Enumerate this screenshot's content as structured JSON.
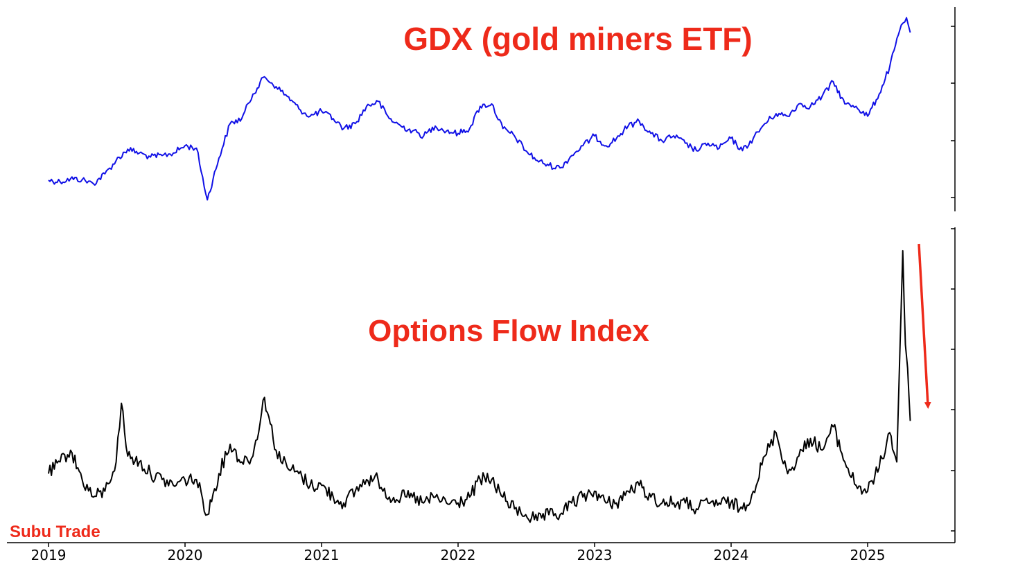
{
  "chart_data": [
    {
      "type": "line",
      "title": "GDX (gold miners ETF)",
      "xlabel": "",
      "ylabel": "",
      "y_tick_labels_shown": false,
      "grid": false,
      "series": [
        {
          "color": "#1010e6",
          "points": [
            [
              "2019-01-01",
              20.5
            ],
            [
              "2019-02-01",
              20.2
            ],
            [
              "2019-03-01",
              20.8
            ],
            [
              "2019-04-01",
              20.6
            ],
            [
              "2019-05-01",
              19.8
            ],
            [
              "2019-06-01",
              21.8
            ],
            [
              "2019-07-01",
              24.5
            ],
            [
              "2019-08-01",
              26.8
            ],
            [
              "2019-09-01",
              26.0
            ],
            [
              "2019-10-01",
              25.2
            ],
            [
              "2019-11-01",
              25.5
            ],
            [
              "2019-12-01",
              26.0
            ],
            [
              "2020-01-01",
              27.5
            ],
            [
              "2020-02-01",
              27.0
            ],
            [
              "2020-03-01",
              16.5
            ],
            [
              "2020-04-01",
              25.0
            ],
            [
              "2020-05-01",
              32.0
            ],
            [
              "2020-06-01",
              33.0
            ],
            [
              "2020-07-01",
              38.0
            ],
            [
              "2020-08-01",
              41.5
            ],
            [
              "2020-09-01",
              39.5
            ],
            [
              "2020-10-01",
              37.5
            ],
            [
              "2020-11-01",
              35.0
            ],
            [
              "2020-12-01",
              33.5
            ],
            [
              "2021-01-01",
              34.5
            ],
            [
              "2021-02-01",
              33.0
            ],
            [
              "2021-03-01",
              31.0
            ],
            [
              "2021-04-01",
              32.0
            ],
            [
              "2021-05-01",
              35.5
            ],
            [
              "2021-06-01",
              36.5
            ],
            [
              "2021-07-01",
              33.0
            ],
            [
              "2021-08-01",
              31.5
            ],
            [
              "2021-09-01",
              30.5
            ],
            [
              "2021-10-01",
              29.5
            ],
            [
              "2021-11-01",
              31.5
            ],
            [
              "2021-12-01",
              30.5
            ],
            [
              "2022-01-01",
              30.0
            ],
            [
              "2022-02-01",
              31.0
            ],
            [
              "2022-03-01",
              35.5
            ],
            [
              "2022-04-01",
              36.0
            ],
            [
              "2022-05-01",
              31.0
            ],
            [
              "2022-06-01",
              29.5
            ],
            [
              "2022-07-01",
              26.5
            ],
            [
              "2022-08-01",
              24.5
            ],
            [
              "2022-09-01",
              23.5
            ],
            [
              "2022-10-01",
              23.0
            ],
            [
              "2022-11-01",
              25.5
            ],
            [
              "2022-12-01",
              27.5
            ],
            [
              "2023-01-01",
              29.5
            ],
            [
              "2023-02-01",
              27.5
            ],
            [
              "2023-03-01",
              29.0
            ],
            [
              "2023-04-01",
              31.5
            ],
            [
              "2023-05-01",
              32.5
            ],
            [
              "2023-06-01",
              30.0
            ],
            [
              "2023-07-01",
              28.5
            ],
            [
              "2023-08-01",
              29.5
            ],
            [
              "2023-09-01",
              28.0
            ],
            [
              "2023-10-01",
              26.5
            ],
            [
              "2023-11-01",
              28.0
            ],
            [
              "2023-12-01",
              27.0
            ],
            [
              "2024-01-01",
              29.0
            ],
            [
              "2024-02-01",
              26.5
            ],
            [
              "2024-03-01",
              29.0
            ],
            [
              "2024-04-01",
              32.0
            ],
            [
              "2024-05-01",
              34.0
            ],
            [
              "2024-06-01",
              33.5
            ],
            [
              "2024-07-01",
              36.0
            ],
            [
              "2024-08-01",
              35.5
            ],
            [
              "2024-09-01",
              37.5
            ],
            [
              "2024-10-01",
              40.5
            ],
            [
              "2024-11-01",
              36.0
            ],
            [
              "2024-12-01",
              35.5
            ],
            [
              "2025-01-01",
              33.5
            ],
            [
              "2025-02-01",
              38.0
            ],
            [
              "2025-03-01",
              43.5
            ],
            [
              "2025-04-01",
              52.0
            ],
            [
              "2025-04-15",
              53.5
            ],
            [
              "2025-04-25",
              50.5
            ]
          ]
        }
      ]
    },
    {
      "type": "line",
      "title": "Options Flow Index",
      "xlabel": "",
      "ylabel": "",
      "x_tick_labels": [
        "2019",
        "2020",
        "2021",
        "2022",
        "2023",
        "2024",
        "2025"
      ],
      "y_tick_labels_shown": false,
      "grid": false,
      "series": [
        {
          "color": "#000000",
          "points": [
            [
              "2019-01-01",
              1.0
            ],
            [
              "2019-02-01",
              1.2
            ],
            [
              "2019-03-01",
              1.4
            ],
            [
              "2019-04-01",
              0.9
            ],
            [
              "2019-05-01",
              0.6
            ],
            [
              "2019-06-01",
              0.7
            ],
            [
              "2019-07-01",
              1.2
            ],
            [
              "2019-07-15",
              2.2
            ],
            [
              "2019-08-01",
              1.3
            ],
            [
              "2019-09-01",
              1.2
            ],
            [
              "2019-10-01",
              1.0
            ],
            [
              "2019-11-01",
              0.9
            ],
            [
              "2019-12-01",
              0.8
            ],
            [
              "2020-01-01",
              0.9
            ],
            [
              "2020-02-01",
              0.9
            ],
            [
              "2020-03-01",
              0.3
            ],
            [
              "2020-04-01",
              1.0
            ],
            [
              "2020-05-01",
              1.5
            ],
            [
              "2020-06-01",
              1.2
            ],
            [
              "2020-07-01",
              1.3
            ],
            [
              "2020-08-01",
              2.3
            ],
            [
              "2020-09-01",
              1.4
            ],
            [
              "2020-10-01",
              1.1
            ],
            [
              "2020-11-01",
              1.0
            ],
            [
              "2020-12-01",
              0.8
            ],
            [
              "2021-01-01",
              0.8
            ],
            [
              "2021-02-01",
              0.6
            ],
            [
              "2021-03-01",
              0.5
            ],
            [
              "2021-04-01",
              0.7
            ],
            [
              "2021-05-01",
              0.9
            ],
            [
              "2021-06-01",
              0.9
            ],
            [
              "2021-07-01",
              0.6
            ],
            [
              "2021-08-01",
              0.6
            ],
            [
              "2021-09-01",
              0.6
            ],
            [
              "2021-10-01",
              0.5
            ],
            [
              "2021-11-01",
              0.6
            ],
            [
              "2021-12-01",
              0.5
            ],
            [
              "2022-01-01",
              0.5
            ],
            [
              "2022-02-01",
              0.6
            ],
            [
              "2022-03-01",
              0.9
            ],
            [
              "2022-04-01",
              0.9
            ],
            [
              "2022-05-01",
              0.6
            ],
            [
              "2022-06-01",
              0.4
            ],
            [
              "2022-07-01",
              0.3
            ],
            [
              "2022-08-01",
              0.2
            ],
            [
              "2022-09-01",
              0.3
            ],
            [
              "2022-10-01",
              0.3
            ],
            [
              "2022-11-01",
              0.5
            ],
            [
              "2022-12-01",
              0.6
            ],
            [
              "2023-01-01",
              0.7
            ],
            [
              "2023-02-01",
              0.5
            ],
            [
              "2023-03-01",
              0.5
            ],
            [
              "2023-04-01",
              0.7
            ],
            [
              "2023-05-01",
              0.8
            ],
            [
              "2023-06-01",
              0.6
            ],
            [
              "2023-07-01",
              0.5
            ],
            [
              "2023-08-01",
              0.5
            ],
            [
              "2023-09-01",
              0.5
            ],
            [
              "2023-10-01",
              0.4
            ],
            [
              "2023-11-01",
              0.5
            ],
            [
              "2023-12-01",
              0.5
            ],
            [
              "2024-01-01",
              0.5
            ],
            [
              "2024-02-01",
              0.4
            ],
            [
              "2024-03-01",
              0.7
            ],
            [
              "2024-04-01",
              1.3
            ],
            [
              "2024-05-01",
              1.7
            ],
            [
              "2024-06-01",
              1.0
            ],
            [
              "2024-07-01",
              1.3
            ],
            [
              "2024-08-01",
              1.6
            ],
            [
              "2024-09-01",
              1.4
            ],
            [
              "2024-10-01",
              1.8
            ],
            [
              "2024-11-01",
              1.2
            ],
            [
              "2024-12-01",
              0.8
            ],
            [
              "2025-01-01",
              0.7
            ],
            [
              "2025-02-01",
              1.1
            ],
            [
              "2025-03-01",
              1.7
            ],
            [
              "2025-03-20",
              1.2
            ],
            [
              "2025-04-05",
              4.8
            ],
            [
              "2025-04-12",
              3.2
            ],
            [
              "2025-04-18",
              2.8
            ],
            [
              "2025-04-25",
              1.9
            ]
          ]
        }
      ]
    }
  ],
  "watermark": "Subu Trade"
}
